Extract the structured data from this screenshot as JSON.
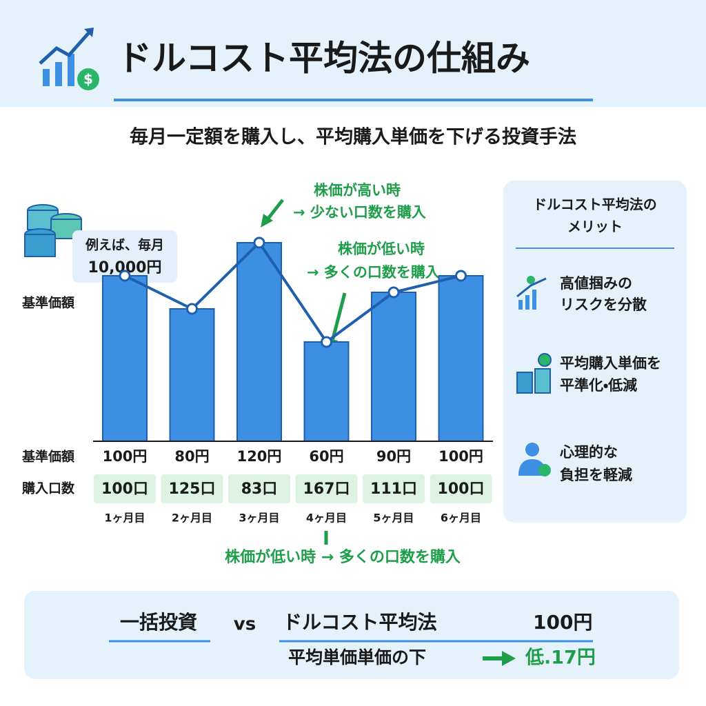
{
  "header": {
    "title": "ドルコスト平均法の仕組み",
    "subtitle": "毎月一定額を購入し、平均購入単価を下げる投資手法"
  },
  "callout": [
    "例えば、毎月",
    "10,000円"
  ],
  "chart_data": {
    "type": "bar",
    "y_label": "基準価額",
    "categories": [
      "1ヶ月目",
      "2ヶ月目",
      "3ヶ月目",
      "4ヶ月目",
      "5ヶ月目",
      "6ヶ月目"
    ],
    "values": [
      100,
      80,
      120,
      60,
      90,
      100
    ],
    "value_labels": [
      "100円",
      "80円",
      "120円",
      "60円",
      "90円",
      "100円"
    ],
    "row_labels": [
      "基準価額",
      "購入口数"
    ],
    "units": [
      "100口",
      "125口",
      "83口",
      "167口",
      "111口",
      "100口"
    ],
    "ylim": [
      0,
      125
    ],
    "color": "#3d8fe3",
    "line_color": "#1f5fae",
    "annotations": [
      [
        "株価が高い時",
        "→ 少ない口数を購入"
      ],
      [
        "株価が低い時",
        "→ 多くの口数を購入"
      ],
      [
        "株価が低い時 → 多くの口数を購入"
      ]
    ]
  },
  "merits": {
    "title": [
      "ドルコスト平均法の",
      "メリット"
    ],
    "items": [
      [
        "高値掴みの",
        "リスクを分散"
      ],
      [
        "平均購入単価を",
        "平準化・低減"
      ],
      [
        "心理的な",
        "負担を軽減"
      ]
    ]
  },
  "comparison": {
    "lump": "一括投資",
    "vs": "vs",
    "dca": "ドルコスト平均法",
    "price": "100円",
    "avg_label": "平均単価単価の下",
    "result": "低.17円"
  }
}
